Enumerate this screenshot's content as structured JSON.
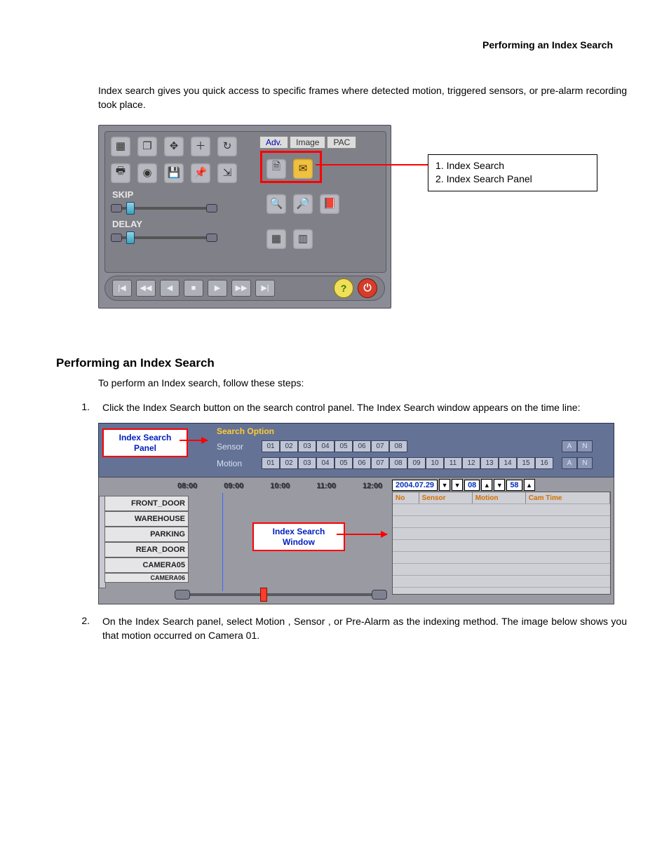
{
  "header": {
    "title": "Performing an Index Search"
  },
  "intro": "Index search gives you quick access to specific frames where detected motion, triggered sensors, or pre-alarm recording took place.",
  "section_heading": "Performing an Index Search",
  "step_intro": "To perform an Index search, follow these steps:",
  "steps": [
    {
      "num": "1.",
      "text": "Click the Index Search button on the search control panel. The Index Search window appears on the time line:"
    },
    {
      "num": "2.",
      "text": "On the Index Search panel, select Motion , Sensor , or Pre-Alarm as the indexing method. The image below shows you that motion occurred on Camera 01."
    }
  ],
  "figure1": {
    "tabs": [
      "Adv.",
      "Image",
      "PAC"
    ],
    "row1_icons": [
      "grid-icon",
      "multi-icon",
      "gear-icon",
      "plus-icon",
      "refresh-icon"
    ],
    "row2_icons": [
      "print-icon",
      "audio-icon",
      "save-icon",
      "pin-icon",
      "export-icon"
    ],
    "right_iconsA": [
      "doc-icon",
      "mail-icon"
    ],
    "right_iconsB": [
      "zoomin-icon",
      "zoomout-icon",
      "book-icon"
    ],
    "right_iconsC": [
      "cal-icon",
      "calrange-icon"
    ],
    "labels": {
      "skip": "SKIP",
      "delay": "DELAY"
    },
    "playback": [
      "first",
      "prev",
      "rew",
      "stop",
      "play",
      "next",
      "last"
    ],
    "play_glyphs": [
      "|◀",
      "◀◀",
      "◀",
      "■",
      "▶",
      "▶▶",
      "▶|"
    ],
    "callout": {
      "l1": "1. Index Search",
      "l2": "2. Index Search Panel"
    }
  },
  "figure2": {
    "panel_label": "Index Search Panel",
    "window_label": "Index Search Window",
    "search_option": "Search Option",
    "sensor_lbl": "Sensor",
    "motion_lbl": "Motion",
    "sensor_nums": [
      "01",
      "02",
      "03",
      "04",
      "05",
      "06",
      "07",
      "08"
    ],
    "motion_nums": [
      "01",
      "02",
      "03",
      "04",
      "05",
      "06",
      "07",
      "08",
      "09",
      "10",
      "11",
      "12",
      "13",
      "14",
      "15",
      "16"
    ],
    "an_labels": [
      "A",
      "N"
    ],
    "times": [
      "08:00",
      "09:00",
      "10:00",
      "11:00",
      "12:00"
    ],
    "cams": [
      "FRONT_DOOR",
      "WAREHOUSE",
      "PARKING",
      "REAR_DOOR",
      "CAMERA05",
      "CAMERA06"
    ],
    "date": {
      "d": "2004.07.29",
      "h": "08",
      "m": "58"
    },
    "result_cols": [
      "No",
      "Sensor",
      "Motion",
      "Cam Time"
    ],
    "result_col_widths": [
      34,
      74,
      74,
      120
    ]
  },
  "colors": {
    "panel_bg": "#8c8c96",
    "panel_inner": "#808088",
    "topbar2": "#647296",
    "mid2": "#9a9aa2",
    "red": "#ff0000",
    "link_blue": "#0020c0",
    "orange": "#d07000",
    "yellow": "#ffcc33"
  }
}
